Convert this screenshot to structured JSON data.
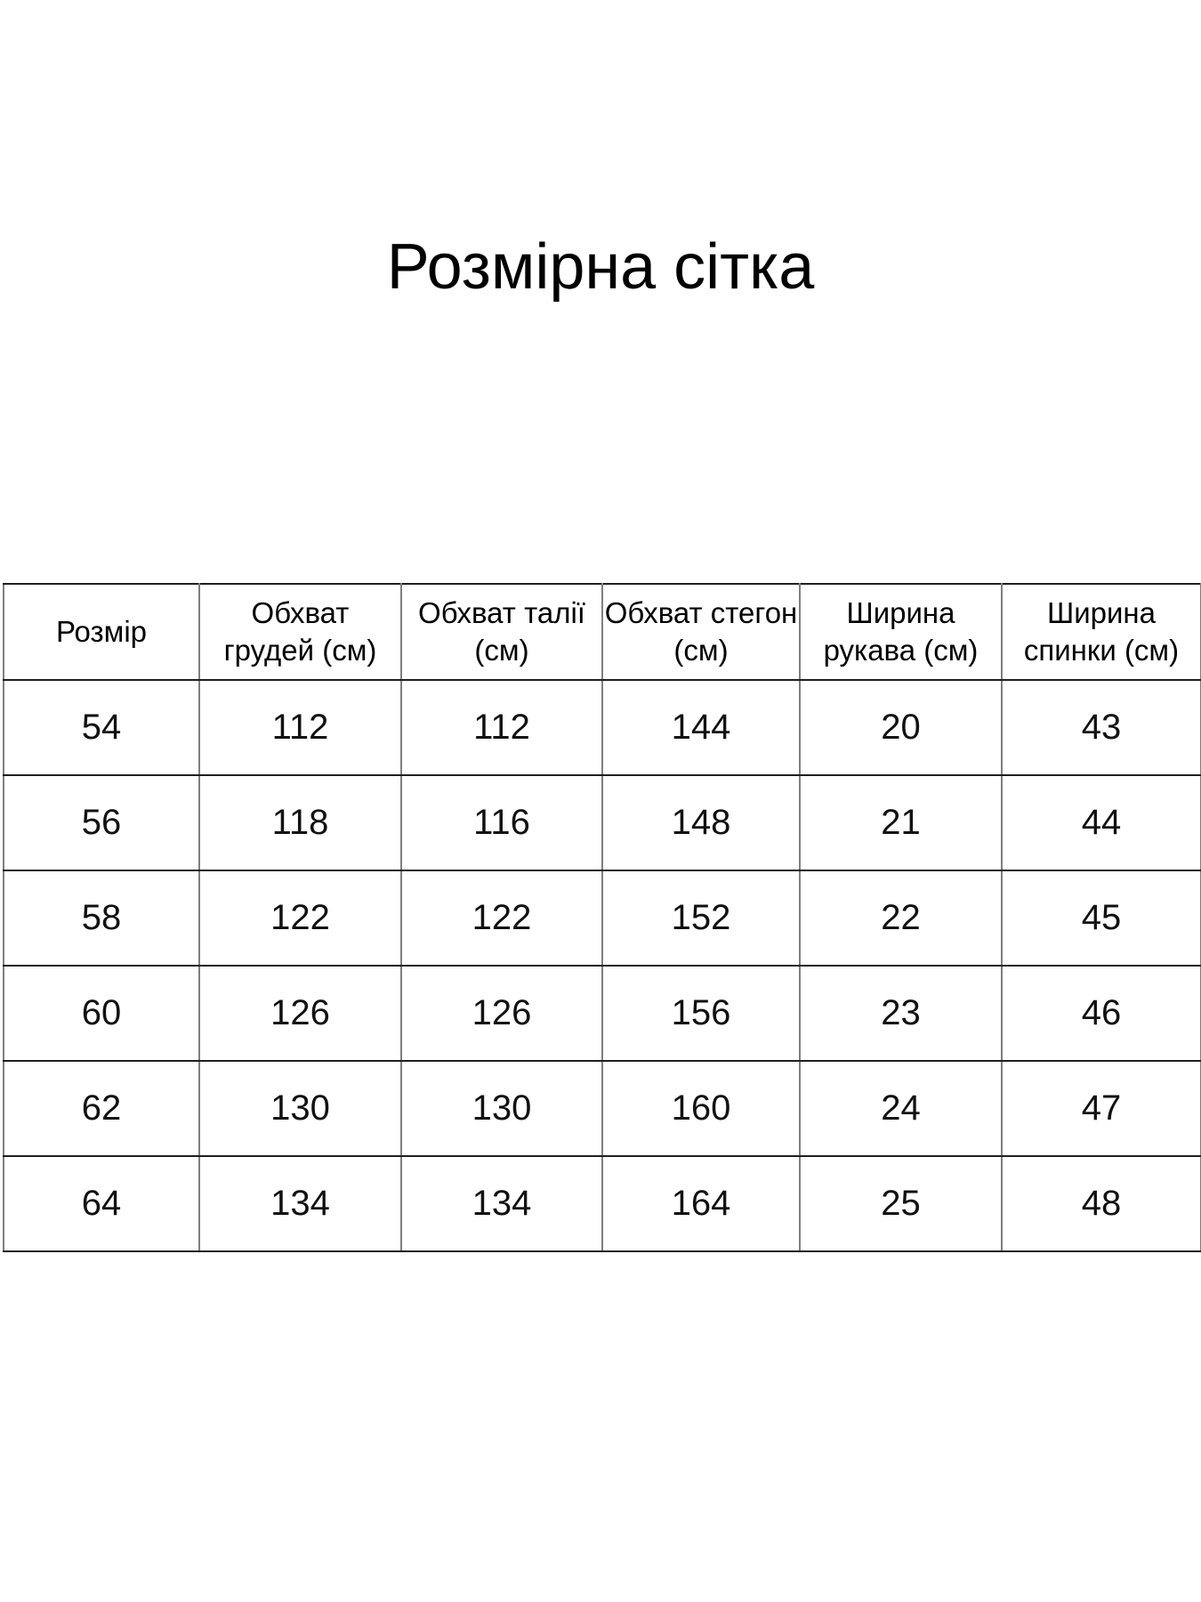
{
  "page": {
    "title": "Розмірна сітка"
  },
  "size_table": {
    "columns": [
      {
        "lines": [
          "Розмір"
        ]
      },
      {
        "lines": [
          "Обхват",
          "грудей (см)"
        ]
      },
      {
        "lines": [
          "Обхват талії",
          "(см)"
        ]
      },
      {
        "lines": [
          "Обхват стегон",
          "(см)"
        ]
      },
      {
        "lines": [
          "Ширина",
          "рукава (см)"
        ]
      },
      {
        "lines": [
          "Ширина",
          "спинки (см)"
        ]
      }
    ],
    "rows": [
      [
        "54",
        "112",
        "112",
        "144",
        "20",
        "43"
      ],
      [
        "56",
        "118",
        "116",
        "148",
        "21",
        "44"
      ],
      [
        "58",
        "122",
        "122",
        "152",
        "22",
        "45"
      ],
      [
        "60",
        "126",
        "126",
        "156",
        "23",
        "46"
      ],
      [
        "62",
        "130",
        "130",
        "160",
        "24",
        "47"
      ],
      [
        "64",
        "134",
        "134",
        "164",
        "25",
        "48"
      ]
    ]
  },
  "chart_data": {
    "type": "table",
    "title": "Розмірна сітка",
    "columns": [
      "Розмір",
      "Обхват грудей (см)",
      "Обхват талії (см)",
      "Обхват стегон (см)",
      "Ширина рукава (см)",
      "Ширина спинки (см)"
    ],
    "rows": [
      [
        54,
        112,
        112,
        144,
        20,
        43
      ],
      [
        56,
        118,
        116,
        148,
        21,
        44
      ],
      [
        58,
        122,
        122,
        152,
        22,
        45
      ],
      [
        60,
        126,
        126,
        156,
        23,
        46
      ],
      [
        62,
        130,
        130,
        160,
        24,
        47
      ],
      [
        64,
        134,
        134,
        164,
        25,
        48
      ]
    ]
  },
  "colors": {
    "row_border": "#1f1f1f",
    "column_border": "#7f7f7f",
    "text": "#000000",
    "background": "#ffffff"
  }
}
